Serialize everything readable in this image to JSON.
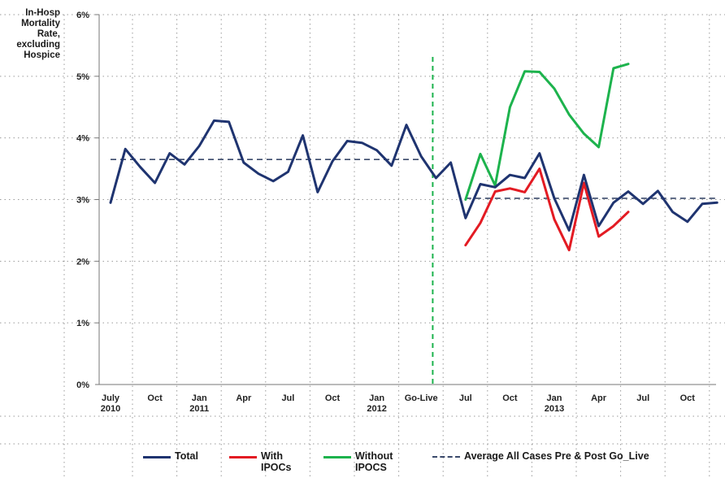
{
  "chart_data": {
    "type": "line",
    "ylabel_lines": [
      "In-Hosp",
      "Mortality",
      "Rate,",
      "excluding",
      "Hospice"
    ],
    "ylim": [
      0,
      6
    ],
    "yticks": [
      "0%",
      "1%",
      "2%",
      "3%",
      "4%",
      "5%",
      "6%"
    ],
    "ytick_values": [
      0,
      1,
      2,
      3,
      4,
      5,
      6
    ],
    "x_start": 0,
    "x_end": 40,
    "xtick_labels": [
      {
        "x": 0,
        "lines": [
          "July",
          "2010"
        ]
      },
      {
        "x": 3,
        "lines": [
          "Oct"
        ]
      },
      {
        "x": 6,
        "lines": [
          "Jan",
          "2011"
        ]
      },
      {
        "x": 9,
        "lines": [
          "Apr"
        ]
      },
      {
        "x": 12,
        "lines": [
          "Jul"
        ]
      },
      {
        "x": 15,
        "lines": [
          "Oct"
        ]
      },
      {
        "x": 18,
        "lines": [
          "Jan",
          "2012"
        ]
      },
      {
        "x": 21,
        "lines": [
          "Go-Live"
        ]
      },
      {
        "x": 24,
        "lines": [
          "Jul"
        ]
      },
      {
        "x": 27,
        "lines": [
          "Oct"
        ]
      },
      {
        "x": 30,
        "lines": [
          "Jan",
          "2013"
        ]
      },
      {
        "x": 33,
        "lines": [
          "Apr"
        ]
      },
      {
        "x": 36,
        "lines": [
          "Jul"
        ]
      },
      {
        "x": 39,
        "lines": [
          "Oct"
        ]
      }
    ],
    "go_live_x": 22,
    "grid": true,
    "series": [
      {
        "name": "Total",
        "color": "#1f3470",
        "x": [
          0,
          1,
          2,
          3,
          4,
          5,
          6,
          7,
          8,
          9,
          10,
          11,
          12,
          13,
          14,
          15,
          16,
          17,
          18,
          19,
          20,
          21,
          22,
          23,
          24,
          25,
          26,
          27,
          28,
          29,
          30,
          31,
          32,
          33,
          34,
          35,
          36,
          37,
          38,
          39,
          40,
          41
        ],
        "values": [
          2.95,
          3.82,
          3.53,
          3.27,
          3.75,
          3.57,
          3.87,
          4.28,
          4.26,
          3.6,
          3.42,
          3.3,
          3.45,
          4.04,
          3.12,
          3.62,
          3.95,
          3.92,
          3.8,
          3.55,
          4.21,
          3.7,
          3.35,
          3.6,
          2.7,
          3.25,
          3.2,
          3.4,
          3.35,
          3.75,
          3.02,
          2.5,
          3.4,
          2.57,
          2.95,
          3.13,
          2.93,
          3.14,
          2.8,
          2.64,
          2.93,
          2.95
        ]
      },
      {
        "name": "With IPOCs",
        "color": "#e31b23",
        "x": [
          24,
          25,
          26,
          27,
          28,
          29,
          30,
          31,
          32,
          33,
          34,
          35
        ],
        "values": [
          2.26,
          2.62,
          3.13,
          3.18,
          3.12,
          3.5,
          2.68,
          2.18,
          3.27,
          2.4,
          2.57,
          2.8
        ]
      },
      {
        "name": "Without IPOCS",
        "color": "#1db34d",
        "x": [
          24,
          25,
          26,
          27,
          28,
          29,
          30,
          31,
          32,
          33,
          34,
          35
        ],
        "values": [
          3.0,
          3.74,
          3.23,
          4.5,
          5.08,
          5.07,
          4.8,
          4.38,
          4.07,
          3.85,
          5.13,
          5.2
        ]
      }
    ],
    "average_lines": [
      {
        "name": "Average All Cases Pre & Post Go_Live",
        "x0": 0,
        "x1": 21,
        "value": 3.65,
        "color": "#3b4a6b"
      },
      {
        "name": "Average All Cases Pre & Post Go_Live",
        "x0": 24,
        "x1": 41,
        "value": 3.02,
        "color": "#3b4a6b"
      }
    ],
    "legend": {
      "placement": "bottom",
      "items": [
        {
          "label_lines": [
            "Total"
          ],
          "color": "#1f3470",
          "style": "solid"
        },
        {
          "label_lines": [
            "With",
            "IPOCs"
          ],
          "color": "#e31b23",
          "style": "solid"
        },
        {
          "label_lines": [
            "Without",
            "IPOCS"
          ],
          "color": "#1db34d",
          "style": "solid"
        },
        {
          "label_lines": [
            "Average All Cases Pre & Post Go_Live"
          ],
          "color": "#3b4a6b",
          "style": "dashed"
        }
      ]
    }
  }
}
